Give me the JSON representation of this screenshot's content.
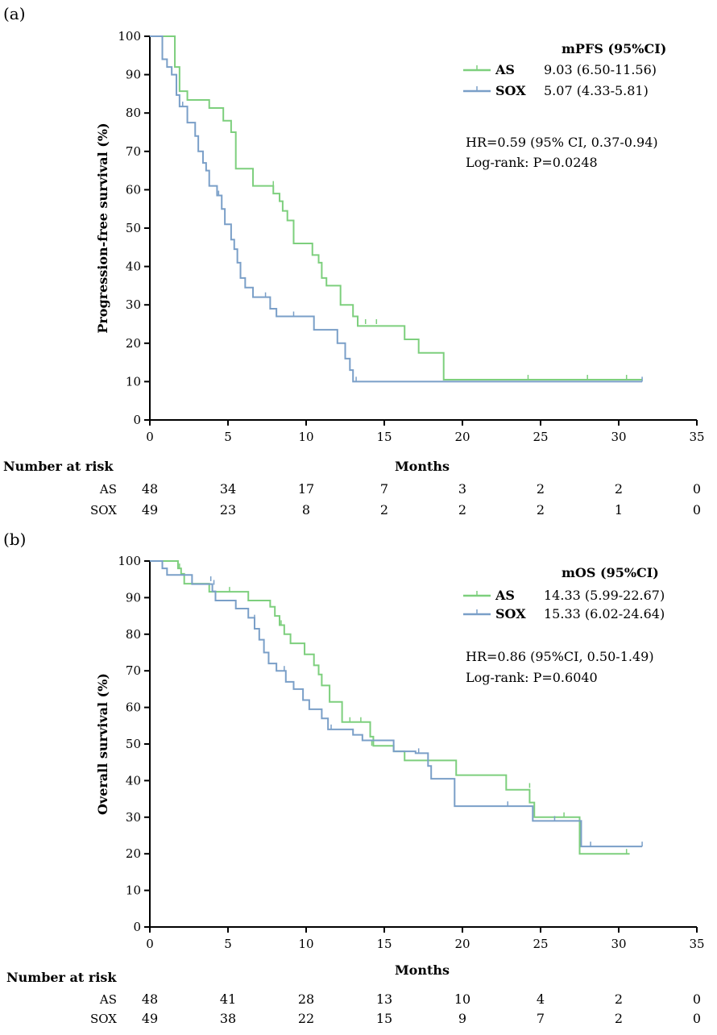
{
  "colors": {
    "AS": "#7dcf7d",
    "SOX": "#7a9fc8",
    "axis": "#000000"
  },
  "chart_data": [
    {
      "panel_label": "(a)",
      "type": "line",
      "step": true,
      "xlabel": "Months",
      "ylabel": "Progression-free survival (%)",
      "xlim": [
        0,
        35
      ],
      "ylim": [
        0,
        100
      ],
      "xticks": [
        0,
        5,
        10,
        15,
        20,
        25,
        30,
        35
      ],
      "yticks": [
        0,
        10,
        20,
        30,
        40,
        50,
        60,
        70,
        80,
        90,
        100
      ],
      "legend": {
        "title": "mPFS (95%CI)",
        "placement": "top-right",
        "entries": [
          {
            "name": "AS",
            "value": "9.03 (6.50-11.56)"
          },
          {
            "name": "SOX",
            "value": "5.07 (4.33-5.81)"
          }
        ],
        "notes": [
          "HR=0.59 (95% CI, 0.37-0.94)",
          "Log-rank: P=0.0248"
        ]
      },
      "series": [
        {
          "name": "AS",
          "points": [
            [
              0,
              100
            ],
            [
              1.4,
              100
            ],
            [
              1.6,
              92
            ],
            [
              1.9,
              85.7
            ],
            [
              2.4,
              83.4
            ],
            [
              3.8,
              81.3
            ],
            [
              4.7,
              78
            ],
            [
              5.2,
              75
            ],
            [
              5.5,
              65.5
            ],
            [
              6.6,
              61
            ],
            [
              7.9,
              59
            ],
            [
              8.3,
              57
            ],
            [
              8.5,
              54.5
            ],
            [
              8.8,
              52
            ],
            [
              9.2,
              46
            ],
            [
              10.4,
              43
            ],
            [
              10.8,
              41
            ],
            [
              11,
              37
            ],
            [
              11.3,
              35
            ],
            [
              12.2,
              30
            ],
            [
              13,
              27
            ],
            [
              13.3,
              24.5
            ],
            [
              16.3,
              21
            ],
            [
              17.2,
              17.5
            ],
            [
              18.8,
              10.5
            ],
            [
              31.5,
              10.5
            ]
          ],
          "censored": [
            [
              7.9,
              61
            ],
            [
              13.8,
              25
            ],
            [
              14.5,
              25
            ],
            [
              24.2,
              10.5
            ],
            [
              28,
              10.5
            ],
            [
              30.5,
              10.5
            ]
          ]
        },
        {
          "name": "SOX",
          "points": [
            [
              0,
              100
            ],
            [
              0.8,
              94
            ],
            [
              1.1,
              92
            ],
            [
              1.4,
              90
            ],
            [
              1.7,
              84.7
            ],
            [
              1.9,
              81.7
            ],
            [
              2.4,
              77.5
            ],
            [
              2.9,
              74
            ],
            [
              3.1,
              70
            ],
            [
              3.4,
              67
            ],
            [
              3.6,
              65
            ],
            [
              3.8,
              61
            ],
            [
              4.3,
              58.5
            ],
            [
              4.6,
              55
            ],
            [
              4.8,
              51
            ],
            [
              5.2,
              47
            ],
            [
              5.4,
              44.5
            ],
            [
              5.6,
              41
            ],
            [
              5.8,
              37
            ],
            [
              6.1,
              34.5
            ],
            [
              6.6,
              32
            ],
            [
              7.7,
              29
            ],
            [
              8.1,
              27
            ],
            [
              10.5,
              23.5
            ],
            [
              12.0,
              20
            ],
            [
              12.5,
              16
            ],
            [
              12.8,
              13
            ],
            [
              13.0,
              10
            ],
            [
              31.5,
              10
            ]
          ],
          "censored": [
            [
              2.1,
              81.7
            ],
            [
              3.6,
              65
            ],
            [
              4.4,
              58.5
            ],
            [
              7.4,
              32
            ],
            [
              9.2,
              27
            ],
            [
              13.2,
              10
            ],
            [
              31.5,
              10
            ]
          ]
        }
      ],
      "risk_table": {
        "title": "Number at risk",
        "times": [
          0,
          5,
          10,
          15,
          20,
          25,
          30,
          35
        ],
        "rows": [
          {
            "name": "AS",
            "values": [
              48,
              34,
              17,
              7,
              3,
              2,
              2,
              0
            ]
          },
          {
            "name": "SOX",
            "values": [
              49,
              23,
              8,
              2,
              2,
              2,
              1,
              0
            ]
          }
        ]
      }
    },
    {
      "panel_label": "(b)",
      "type": "line",
      "step": true,
      "xlabel": "Months",
      "ylabel": "Overall survival (%)",
      "xlim": [
        0,
        35
      ],
      "ylim": [
        0,
        100
      ],
      "xticks": [
        0,
        5,
        10,
        15,
        20,
        25,
        30,
        35
      ],
      "yticks": [
        0,
        10,
        20,
        30,
        40,
        50,
        60,
        70,
        80,
        90,
        100
      ],
      "legend": {
        "title": "mOS (95%CI)",
        "placement": "top-right",
        "entries": [
          {
            "name": "AS",
            "value": "14.33 (5.99-22.67)"
          },
          {
            "name": "SOX",
            "value": "15.33 (6.02-24.64)"
          }
        ],
        "notes": [
          "HR=0.86 (95%CI, 0.50-1.49)",
          "Log-rank: P=0.6040"
        ]
      },
      "series": [
        {
          "name": "AS",
          "points": [
            [
              0,
              100
            ],
            [
              1.5,
              100
            ],
            [
              1.8,
              98
            ],
            [
              2.0,
              96.5
            ],
            [
              2.2,
              93.8
            ],
            [
              3.7,
              93.8
            ],
            [
              3.8,
              91.6
            ],
            [
              6.2,
              91.6
            ],
            [
              6.3,
              89.2
            ],
            [
              7.5,
              89.2
            ],
            [
              7.7,
              87.5
            ],
            [
              8.0,
              85
            ],
            [
              8.3,
              82.5
            ],
            [
              8.6,
              80
            ],
            [
              9.0,
              77.5
            ],
            [
              9.9,
              74.5
            ],
            [
              10.5,
              71.5
            ],
            [
              10.8,
              69
            ],
            [
              11,
              66
            ],
            [
              11.5,
              61.5
            ],
            [
              12.3,
              56
            ],
            [
              14.1,
              52
            ],
            [
              14.3,
              49.5
            ],
            [
              15.6,
              48
            ],
            [
              16.3,
              45.5
            ],
            [
              19.6,
              41.5
            ],
            [
              22.8,
              37.5
            ],
            [
              24.3,
              34
            ],
            [
              24.6,
              30
            ],
            [
              27.5,
              20
            ],
            [
              30.7,
              20
            ]
          ],
          "censored": [
            [
              1.9,
              98
            ],
            [
              5.1,
              91.6
            ],
            [
              8.4,
              82.5
            ],
            [
              12.8,
              56
            ],
            [
              13.5,
              56
            ],
            [
              14.2,
              49.5
            ],
            [
              24.3,
              38
            ],
            [
              26.5,
              30
            ],
            [
              30.5,
              20
            ]
          ]
        },
        {
          "name": "SOX",
          "points": [
            [
              0,
              100
            ],
            [
              0.7,
              100
            ],
            [
              0.8,
              98
            ],
            [
              1.1,
              96.2
            ],
            [
              2.6,
              96.2
            ],
            [
              2.7,
              93.7
            ],
            [
              4.0,
              91.7
            ],
            [
              4.2,
              89.2
            ],
            [
              5.5,
              87
            ],
            [
              6.3,
              84.5
            ],
            [
              6.7,
              81.5
            ],
            [
              7.0,
              78.5
            ],
            [
              7.3,
              75
            ],
            [
              7.6,
              72
            ],
            [
              8.1,
              70
            ],
            [
              8.7,
              67
            ],
            [
              9.2,
              65
            ],
            [
              9.8,
              62
            ],
            [
              10.2,
              59.5
            ],
            [
              11.0,
              57
            ],
            [
              11.4,
              54
            ],
            [
              13,
              52.5
            ],
            [
              13.6,
              51
            ],
            [
              15.6,
              48
            ],
            [
              17,
              47.5
            ],
            [
              17.8,
              44
            ],
            [
              18,
              40.5
            ],
            [
              19.5,
              33
            ],
            [
              24.5,
              29
            ],
            [
              27.6,
              22
            ],
            [
              31.5,
              22
            ]
          ],
          "censored": [
            [
              3.9,
              94.5
            ],
            [
              4.1,
              93.5
            ],
            [
              6.7,
              84
            ],
            [
              8.6,
              70
            ],
            [
              11.6,
              54
            ],
            [
              17.2,
              47.5
            ],
            [
              22.9,
              33
            ],
            [
              25.9,
              29
            ],
            [
              28.2,
              22
            ],
            [
              31.5,
              22
            ]
          ]
        }
      ],
      "risk_table": {
        "title": "Number at risk",
        "times": [
          0,
          5,
          10,
          15,
          20,
          25,
          30,
          35
        ],
        "rows": [
          {
            "name": "AS",
            "values": [
              48,
              41,
              28,
              13,
              10,
              4,
              2,
              0
            ]
          },
          {
            "name": "SOX",
            "values": [
              49,
              38,
              22,
              15,
              9,
              7,
              2,
              0
            ]
          }
        ]
      }
    }
  ]
}
